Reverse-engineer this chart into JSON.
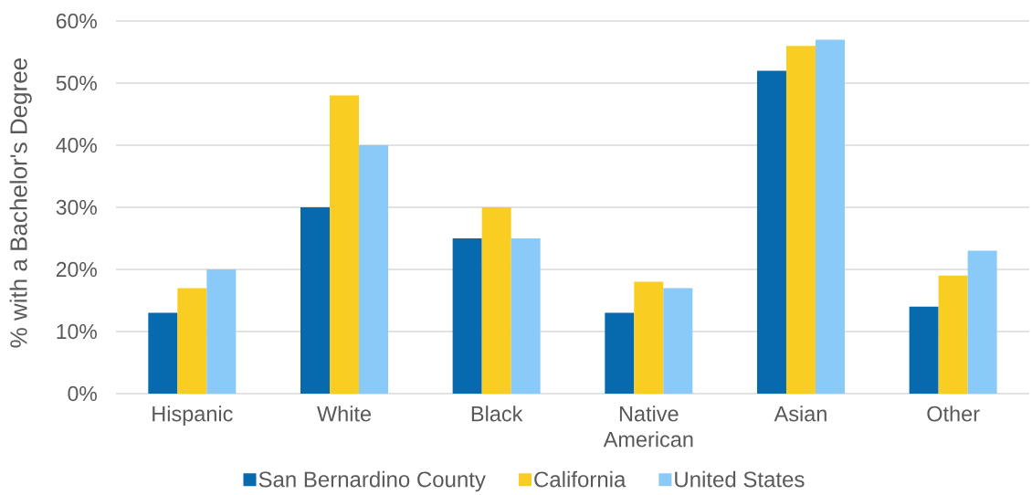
{
  "chart_data": {
    "type": "bar",
    "ylabel": "% with a Bachelor's Degree",
    "categories": [
      "Hispanic",
      "White",
      "Black",
      "Native American",
      "Asian",
      "Other"
    ],
    "series": [
      {
        "name": "San Bernardino County",
        "color": "#0769ae",
        "values": [
          13,
          30,
          25,
          13,
          52,
          14
        ]
      },
      {
        "name": "California",
        "color": "#facd23",
        "values": [
          17,
          48,
          30,
          18,
          56,
          19
        ]
      },
      {
        "name": "United States",
        "color": "#89caf9",
        "values": [
          20,
          40,
          25,
          17,
          57,
          23
        ]
      }
    ],
    "ylim": [
      0,
      60
    ],
    "yticks": [
      {
        "value": 0,
        "label": "0%"
      },
      {
        "value": 10,
        "label": "10%"
      },
      {
        "value": 20,
        "label": "20%"
      },
      {
        "value": 30,
        "label": "30%"
      },
      {
        "value": 40,
        "label": "40%"
      },
      {
        "value": 50,
        "label": "50%"
      },
      {
        "value": 60,
        "label": "60%"
      }
    ],
    "grid": "y",
    "legend": "bottom"
  }
}
